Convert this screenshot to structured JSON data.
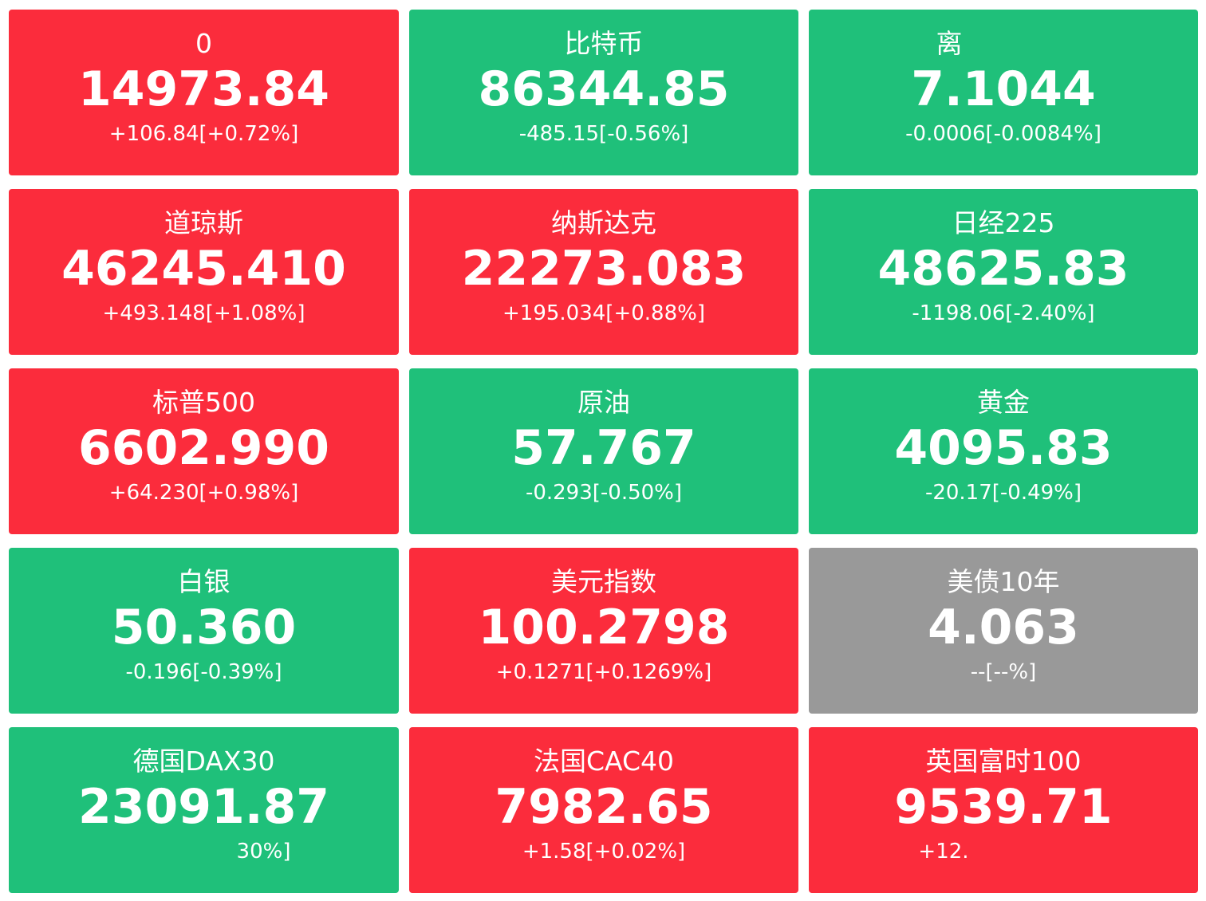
{
  "colors": {
    "up": "#fb2c3c",
    "down": "#1fc07a",
    "flat": "#999999",
    "text": "#ffffff"
  },
  "cards": [
    {
      "name": "0",
      "price": "14973.84",
      "change": "+106.84[+0.72%]",
      "trend": "up"
    },
    {
      "name": "比特币",
      "price": "86344.85",
      "change": "-485.15[-0.56%]",
      "trend": "down"
    },
    {
      "name": "离",
      "price": "7.1044",
      "change": "-0.0006[-0.0084%]",
      "trend": "down"
    },
    {
      "name": "道琼斯",
      "price": "46245.410",
      "change": "+493.148[+1.08%]",
      "trend": "up"
    },
    {
      "name": "纳斯达克",
      "price": "22273.083",
      "change": "+195.034[+0.88%]",
      "trend": "up"
    },
    {
      "name": "日经225",
      "price": "48625.83",
      "change": "-1198.06[-2.40%]",
      "trend": "down"
    },
    {
      "name": "标普500",
      "price": "6602.990",
      "change": "+64.230[+0.98%]",
      "trend": "up"
    },
    {
      "name": "原油",
      "price": "57.767",
      "change": "-0.293[-0.50%]",
      "trend": "down"
    },
    {
      "name": "黄金",
      "price": "4095.83",
      "change": "-20.17[-0.49%]",
      "trend": "down"
    },
    {
      "name": "白银",
      "price": "50.360",
      "change": "-0.196[-0.39%]",
      "trend": "down"
    },
    {
      "name": "美元指数",
      "price": "100.2798",
      "change": "+0.1271[+0.1269%]",
      "trend": "up"
    },
    {
      "name": "美债10年",
      "price": "4.063",
      "change": "--[--%]",
      "trend": "flat"
    },
    {
      "name": "德国DAX30",
      "price": "23091.87",
      "change": "30%]",
      "trend": "down"
    },
    {
      "name": "法国CAC40",
      "price": "7982.65",
      "change": "+1.58[+0.02%]",
      "trend": "up"
    },
    {
      "name": "英国富时100",
      "price": "9539.71",
      "change": "+12.",
      "trend": "up"
    }
  ]
}
